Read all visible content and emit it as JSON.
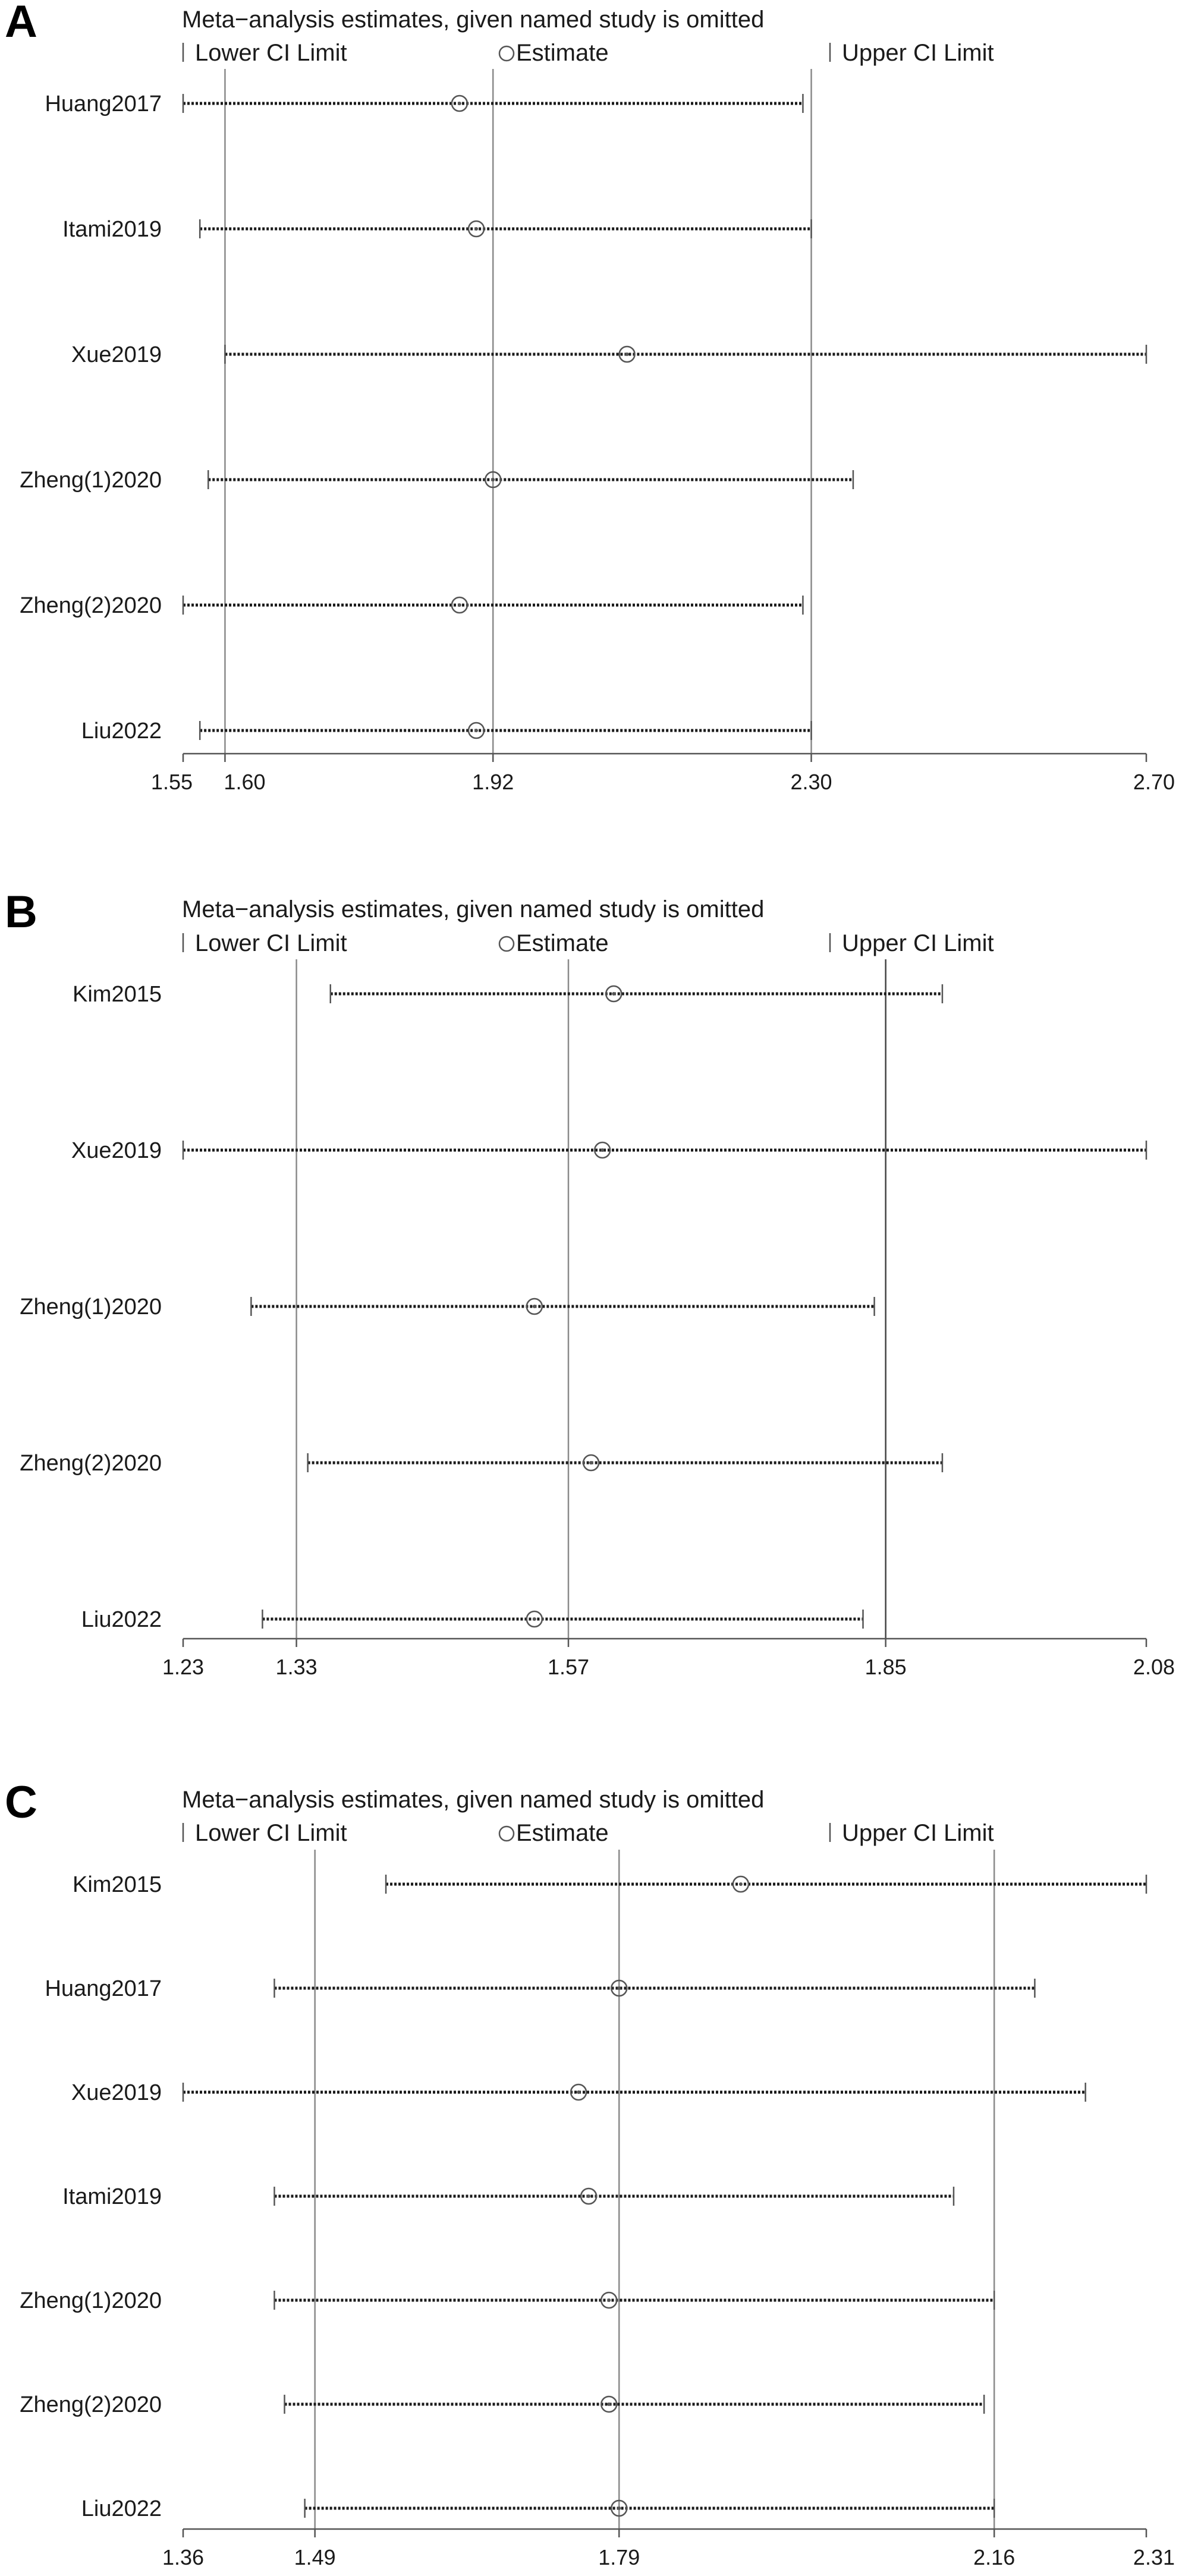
{
  "chart_data": [
    {
      "type": "forest",
      "panel": "A",
      "title": "Meta−analysis estimates, given named study is omitted",
      "legend": [
        "Lower CI Limit",
        "Estimate",
        "Upper CI Limit"
      ],
      "xlim": [
        1.55,
        2.7
      ],
      "ticks": [
        {
          "value": 1.55,
          "label": "1.55"
        },
        {
          "value": 1.6,
          "label": "1.60"
        },
        {
          "value": 1.92,
          "label": "1.92"
        },
        {
          "value": 2.3,
          "label": "2.30"
        },
        {
          "value": 2.7,
          "label": "2.70"
        }
      ],
      "reference_lines": [
        1.6,
        1.92,
        2.3
      ],
      "studies": [
        {
          "name": "Huang2017",
          "lower": 1.55,
          "estimate": 1.88,
          "upper": 2.29
        },
        {
          "name": "Itami2019",
          "lower": 1.57,
          "estimate": 1.9,
          "upper": 2.3
        },
        {
          "name": "Xue2019",
          "lower": 1.6,
          "estimate": 2.08,
          "upper": 2.7
        },
        {
          "name": "Zheng(1)2020",
          "lower": 1.58,
          "estimate": 1.92,
          "upper": 2.35
        },
        {
          "name": "Zheng(2)2020",
          "lower": 1.55,
          "estimate": 1.88,
          "upper": 2.29
        },
        {
          "name": "Liu2022",
          "lower": 1.57,
          "estimate": 1.9,
          "upper": 2.3
        }
      ]
    },
    {
      "type": "forest",
      "panel": "B",
      "title": "Meta−analysis estimates, given named study is omitted",
      "legend": [
        "Lower CI Limit",
        "Estimate",
        "Upper CI Limit"
      ],
      "xlim": [
        1.23,
        2.08
      ],
      "ticks": [
        {
          "value": 1.23,
          "label": "1.23"
        },
        {
          "value": 1.33,
          "label": "1.33"
        },
        {
          "value": 1.57,
          "label": "1.57"
        },
        {
          "value": 1.85,
          "label": "1.85"
        },
        {
          "value": 2.08,
          "label": "2.08"
        }
      ],
      "reference_lines": [
        1.33,
        1.57,
        1.85
      ],
      "studies": [
        {
          "name": "Kim2015",
          "lower": 1.36,
          "estimate": 1.61,
          "upper": 1.9
        },
        {
          "name": "Xue2019",
          "lower": 1.23,
          "estimate": 1.6,
          "upper": 2.08
        },
        {
          "name": "Zheng(1)2020",
          "lower": 1.29,
          "estimate": 1.54,
          "upper": 1.84
        },
        {
          "name": "Zheng(2)2020",
          "lower": 1.34,
          "estimate": 1.59,
          "upper": 1.9
        },
        {
          "name": "Liu2022",
          "lower": 1.3,
          "estimate": 1.54,
          "upper": 1.83
        }
      ]
    },
    {
      "type": "forest",
      "panel": "C",
      "title": "Meta−analysis estimates, given named study is omitted",
      "legend": [
        "Lower CI Limit",
        "Estimate",
        "Upper CI Limit"
      ],
      "xlim": [
        1.36,
        2.31
      ],
      "ticks": [
        {
          "value": 1.36,
          "label": "1.36"
        },
        {
          "value": 1.49,
          "label": "1.49"
        },
        {
          "value": 1.79,
          "label": "1.79"
        },
        {
          "value": 2.16,
          "label": "2.16"
        },
        {
          "value": 2.31,
          "label": "2.31"
        }
      ],
      "reference_lines": [
        1.49,
        1.79,
        2.16
      ],
      "studies": [
        {
          "name": "Kim2015",
          "lower": 1.56,
          "estimate": 1.91,
          "upper": 2.31
        },
        {
          "name": "Huang2017",
          "lower": 1.45,
          "estimate": 1.79,
          "upper": 2.2
        },
        {
          "name": "Xue2019",
          "lower": 1.36,
          "estimate": 1.75,
          "upper": 2.25
        },
        {
          "name": "Itami2019",
          "lower": 1.45,
          "estimate": 1.76,
          "upper": 2.12
        },
        {
          "name": "Zheng(1)2020",
          "lower": 1.45,
          "estimate": 1.78,
          "upper": 2.16
        },
        {
          "name": "Zheng(2)2020",
          "lower": 1.46,
          "estimate": 1.78,
          "upper": 2.15
        },
        {
          "name": "Liu2022",
          "lower": 1.48,
          "estimate": 1.79,
          "upper": 2.16
        }
      ]
    }
  ]
}
